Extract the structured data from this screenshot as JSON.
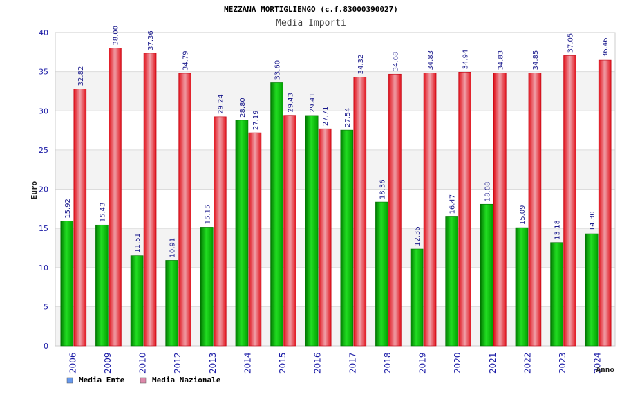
{
  "chart_data": {
    "type": "bar",
    "title": "MEZZANA MORTIGLIENGO (c.f.83000390027)",
    "subtitle": "Media Importi",
    "xlabel": "Anno",
    "ylabel": "Euro",
    "ylim": [
      0,
      40
    ],
    "yticks": [
      0,
      5,
      10,
      15,
      20,
      25,
      30,
      35,
      40
    ],
    "grid": true,
    "legend_position": "bottom-left",
    "categories": [
      "2006",
      "2009",
      "2010",
      "2012",
      "2013",
      "2014",
      "2015",
      "2016",
      "2017",
      "2018",
      "2019",
      "2020",
      "2021",
      "2022",
      "2023",
      "2024"
    ],
    "series": [
      {
        "name": "Media Ente",
        "color": "#00b000",
        "legend_color": "#6699ee",
        "values": [
          15.92,
          15.43,
          11.51,
          10.91,
          15.15,
          28.8,
          33.6,
          29.41,
          27.54,
          18.36,
          12.36,
          16.47,
          18.08,
          15.09,
          13.18,
          14.3
        ],
        "labels": [
          "15.92",
          "15.43",
          "11.51",
          "10.91",
          "15.15",
          "28.80",
          "33.60",
          "29.41",
          "27.54",
          "18.36",
          "12.36",
          "16.47",
          "18.08",
          "15.09",
          "13.18",
          "14.30"
        ]
      },
      {
        "name": "Media Nazionale",
        "color": "#e8202a",
        "legend_color": "#dd88aa",
        "values": [
          32.82,
          38.0,
          37.36,
          34.79,
          29.24,
          27.19,
          29.43,
          27.71,
          34.32,
          34.68,
          34.83,
          34.94,
          34.83,
          34.85,
          37.05,
          36.46
        ],
        "labels": [
          "32.82",
          "38.00",
          "37.36",
          "34.79",
          "29.24",
          "27.19",
          "29.43",
          "27.71",
          "34.32",
          "34.68",
          "34.83",
          "34.94",
          "34.83",
          "34.85",
          "37.05",
          "36.46"
        ]
      }
    ]
  }
}
